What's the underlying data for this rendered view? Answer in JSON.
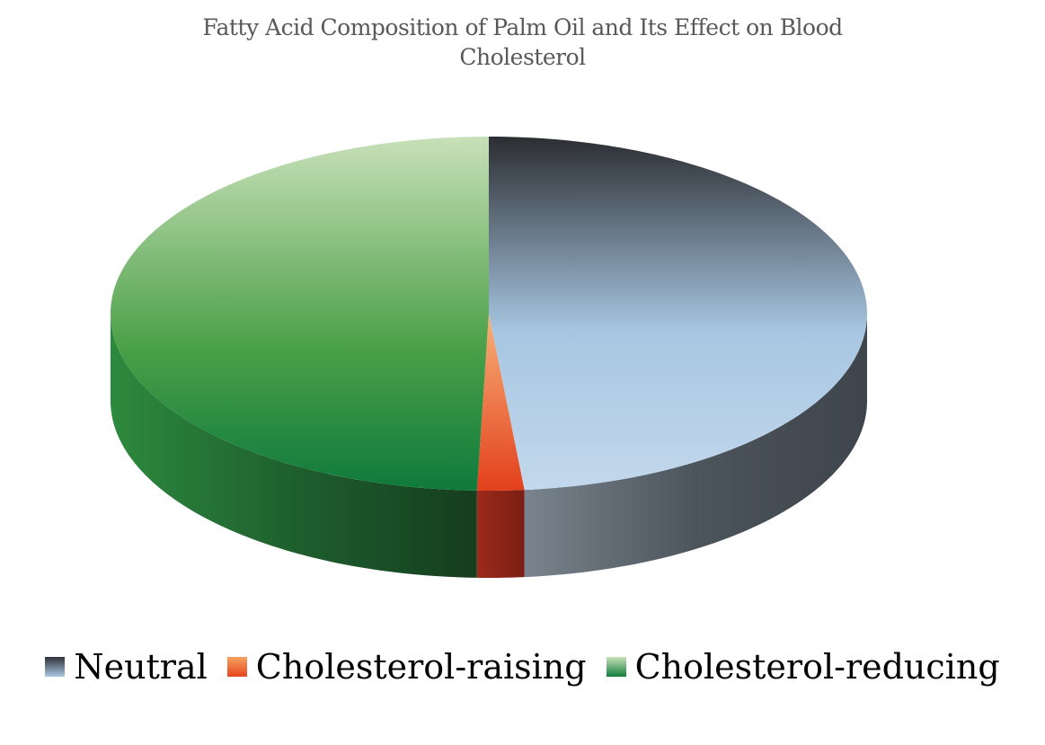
{
  "chart_data": {
    "type": "pie",
    "style": "3d",
    "title_lines": [
      "Fatty Acid  Composition of Palm Oil and Its Effect on Blood",
      "Cholesterol"
    ],
    "categories": [
      "Neutral",
      "Cholesterol-raising",
      "Cholesterol-reducing"
    ],
    "values": [
      48.5,
      2,
      49.5
    ],
    "unit": "%",
    "colors": {
      "Neutral": [
        "#2f3238",
        "#a9c8e3"
      ],
      "Cholesterol-raising": [
        "#f6a15f",
        "#e6461f"
      ],
      "Cholesterol-reducing": [
        "#c8e2b8",
        "#117d3e"
      ]
    },
    "legend_position": "bottom"
  }
}
